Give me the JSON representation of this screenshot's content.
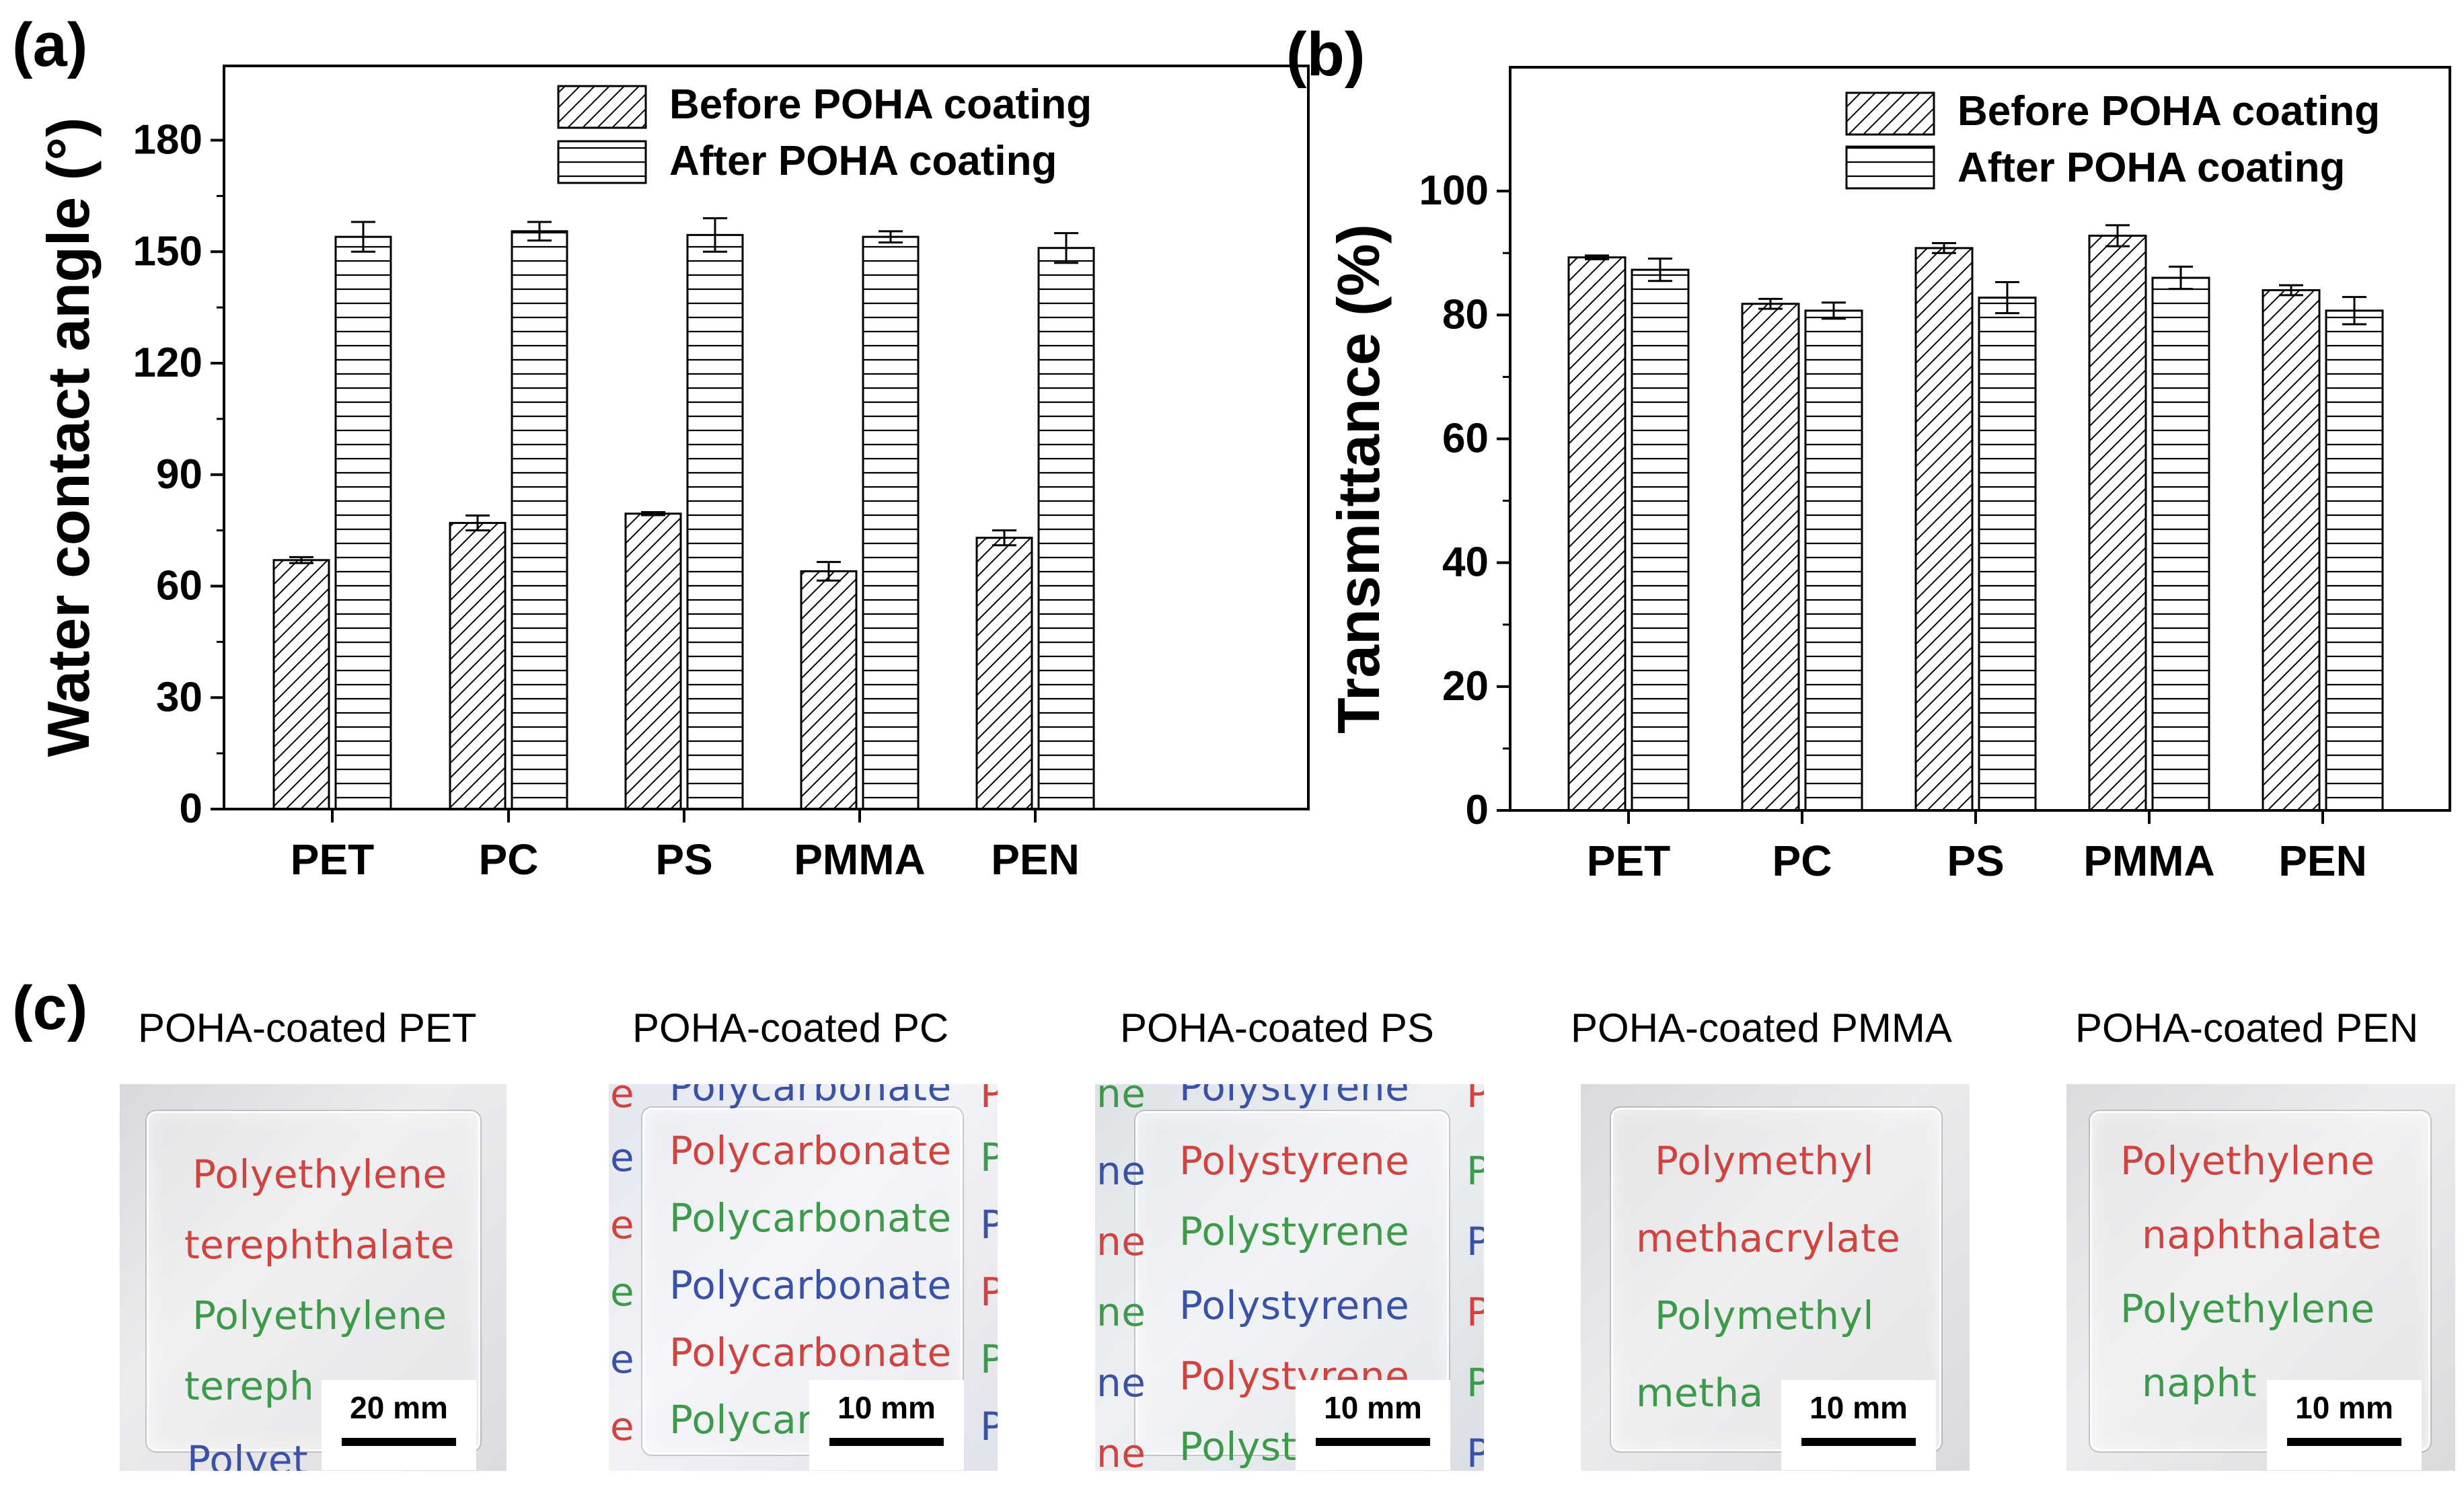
{
  "panels": {
    "a": "(a)",
    "b": "(b)",
    "c": "(c)"
  },
  "chart_data": [
    {
      "type": "bar",
      "panel": "(a)",
      "ylabel": "Water contact angle (°)",
      "xlabel": "",
      "categories": [
        "PET",
        "PC",
        "PS",
        "PMMA",
        "PEN"
      ],
      "ylim": [
        0,
        200
      ],
      "yticks": [
        0,
        30,
        60,
        90,
        120,
        150,
        180
      ],
      "legend_position": "top-right",
      "series": [
        {
          "name": "Before POHA coating",
          "pattern": "diagonal",
          "values": [
            67,
            77,
            79.5,
            64,
            73
          ],
          "errors": [
            0.8,
            2,
            0.4,
            2.5,
            2
          ]
        },
        {
          "name": "After POHA coating",
          "pattern": "horizontal",
          "values": [
            154,
            155.5,
            154.5,
            154,
            151
          ],
          "errors": [
            4,
            2.5,
            4.5,
            1.5,
            4
          ]
        }
      ]
    },
    {
      "type": "bar",
      "panel": "(b)",
      "ylabel": "Transmittance (%)",
      "xlabel": "",
      "categories": [
        "PET",
        "PC",
        "PS",
        "PMMA",
        "PEN"
      ],
      "ylim": [
        0,
        120
      ],
      "yticks": [
        0,
        20,
        40,
        60,
        80,
        100
      ],
      "legend_position": "top-right",
      "series": [
        {
          "name": "Before POHA coating",
          "pattern": "diagonal",
          "values": [
            89.3,
            81.8,
            90.8,
            92.8,
            84
          ],
          "errors": [
            0.3,
            0.8,
            0.8,
            1.7,
            0.8
          ]
        },
        {
          "name": "After POHA coating",
          "pattern": "horizontal",
          "values": [
            87.3,
            80.7,
            82.8,
            86,
            80.7
          ],
          "errors": [
            1.8,
            1.3,
            2.5,
            1.8,
            2.2
          ]
        }
      ]
    }
  ],
  "photos": [
    {
      "title": "POHA-coated PET",
      "scale": "20 mm",
      "lines": [
        {
          "text": "Polyethylene",
          "color": "red"
        },
        {
          "text": "terephthalate",
          "color": "red"
        },
        {
          "text": "Polyethylene",
          "color": "green"
        },
        {
          "text": "tereph",
          "color": "green"
        },
        {
          "text": "Polyet",
          "color": "blue"
        }
      ]
    },
    {
      "title": "POHA-coated PC",
      "scale": "10 mm",
      "lines": [
        {
          "text": "Polycarbonate",
          "color": "blue"
        },
        {
          "text": "Polycarbonate",
          "color": "red"
        },
        {
          "text": "Polycarbonate",
          "color": "green"
        },
        {
          "text": "Polycarbonate",
          "color": "blue"
        },
        {
          "text": "Polycarbonate",
          "color": "red"
        },
        {
          "text": "Polycar",
          "color": "green"
        }
      ]
    },
    {
      "title": "POHA-coated PS",
      "scale": "10 mm",
      "lines": [
        {
          "text": "Polystyrene",
          "color": "blue"
        },
        {
          "text": "Polystyrene",
          "color": "red"
        },
        {
          "text": "Polystyrene",
          "color": "green"
        },
        {
          "text": "Polystyrene",
          "color": "blue"
        },
        {
          "text": "Polystyrene",
          "color": "red"
        },
        {
          "text": "Polystyrene",
          "color": "green"
        }
      ]
    },
    {
      "title": "POHA-coated PMMA",
      "scale": "10 mm",
      "lines": [
        {
          "text": "Polymethyl",
          "color": "red"
        },
        {
          "text": "methacrylate",
          "color": "red"
        },
        {
          "text": "Polymethyl",
          "color": "green"
        },
        {
          "text": "metha",
          "color": "green"
        }
      ]
    },
    {
      "title": "POHA-coated PEN",
      "scale": "10 mm",
      "lines": [
        {
          "text": "Polyethylene",
          "color": "red"
        },
        {
          "text": "naphthalate",
          "color": "red"
        },
        {
          "text": "Polyethylene",
          "color": "green"
        },
        {
          "text": "napht",
          "color": "green"
        }
      ]
    }
  ]
}
